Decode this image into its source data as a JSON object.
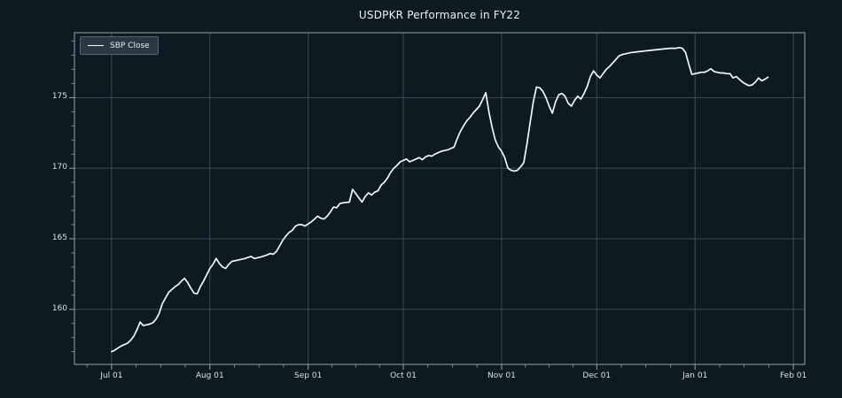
{
  "window": {
    "title": "USDPKR Performance in FY22",
    "background": "#0d1a22"
  },
  "header": {
    "title": "USDPKR Performance in FY22"
  },
  "legend": {
    "label": "SBP Close"
  },
  "style": {
    "background": "#0d1a22",
    "plot_background": "#0d1a22",
    "line_color": "#f4f6f7",
    "grid_color": "#41505a",
    "spine_color": "#93a2ab",
    "tick_color": "#93a2ab",
    "tick_label_color": "#d8e0e3",
    "title_color": "#eef2f4",
    "legend_background": "#2a3844",
    "legend_border": "#55646e",
    "legend_text": "#e8eef0"
  },
  "chart_data": {
    "type": "line",
    "title": "USDPKR Performance in FY22",
    "xlabel": "",
    "ylabel": "",
    "grid": true,
    "legend_position": "upper left",
    "x_unit": "days since Jul 01",
    "xlim": [
      -11.7,
      218.6
    ],
    "ylim": [
      156.1,
      179.6
    ],
    "x_major_ticks": [
      {
        "pos": 0,
        "label": "Jul 01"
      },
      {
        "pos": 31,
        "label": "Aug 01"
      },
      {
        "pos": 62,
        "label": "Sep 01"
      },
      {
        "pos": 92,
        "label": "Oct 01"
      },
      {
        "pos": 123,
        "label": "Nov 01"
      },
      {
        "pos": 153,
        "label": "Dec 01"
      },
      {
        "pos": 184,
        "label": "Jan 01"
      },
      {
        "pos": 215,
        "label": "Feb 01"
      }
    ],
    "x_minor_per_interval": 4,
    "y_major_ticks": [
      {
        "pos": 160,
        "label": "160"
      },
      {
        "pos": 165,
        "label": "165"
      },
      {
        "pos": 170,
        "label": "170"
      },
      {
        "pos": 175,
        "label": "175"
      }
    ],
    "y_minor_step": 1,
    "series": [
      {
        "name": "SBP Close",
        "color": "#f4f6f7",
        "points": [
          [
            0,
            157.0
          ],
          [
            1,
            157.1
          ],
          [
            2,
            157.25
          ],
          [
            3,
            157.4
          ],
          [
            4,
            157.5
          ],
          [
            5,
            157.6
          ],
          [
            6,
            157.8
          ],
          [
            7,
            158.1
          ],
          [
            8,
            158.55
          ],
          [
            9,
            159.1
          ],
          [
            10,
            158.85
          ],
          [
            11,
            158.9
          ],
          [
            12,
            158.95
          ],
          [
            13,
            159.05
          ],
          [
            14,
            159.3
          ],
          [
            15,
            159.7
          ],
          [
            16,
            160.4
          ],
          [
            17,
            160.8
          ],
          [
            18,
            161.2
          ],
          [
            19,
            161.4
          ],
          [
            20,
            161.6
          ],
          [
            21,
            161.75
          ],
          [
            22,
            162.0
          ],
          [
            23,
            162.2
          ],
          [
            24,
            161.9
          ],
          [
            25,
            161.5
          ],
          [
            26,
            161.15
          ],
          [
            27,
            161.1
          ],
          [
            28,
            161.6
          ],
          [
            29,
            162.0
          ],
          [
            30,
            162.45
          ],
          [
            31,
            162.9
          ],
          [
            32,
            163.2
          ],
          [
            33,
            163.6
          ],
          [
            34,
            163.25
          ],
          [
            35,
            163.0
          ],
          [
            36,
            162.9
          ],
          [
            37,
            163.2
          ],
          [
            38,
            163.4
          ],
          [
            40,
            163.5
          ],
          [
            42,
            163.6
          ],
          [
            44,
            163.75
          ],
          [
            45,
            163.6
          ],
          [
            47,
            163.7
          ],
          [
            49,
            163.85
          ],
          [
            50,
            163.95
          ],
          [
            51,
            163.9
          ],
          [
            52,
            164.1
          ],
          [
            53,
            164.5
          ],
          [
            54,
            164.9
          ],
          [
            55,
            165.2
          ],
          [
            56,
            165.45
          ],
          [
            57,
            165.6
          ],
          [
            58,
            165.9
          ],
          [
            59,
            166.0
          ],
          [
            60,
            166.0
          ],
          [
            61,
            165.9
          ],
          [
            62,
            166.05
          ],
          [
            63,
            166.2
          ],
          [
            64,
            166.4
          ],
          [
            65,
            166.6
          ],
          [
            66,
            166.45
          ],
          [
            67,
            166.4
          ],
          [
            68,
            166.6
          ],
          [
            69,
            166.9
          ],
          [
            70,
            167.25
          ],
          [
            71,
            167.2
          ],
          [
            72,
            167.5
          ],
          [
            73,
            167.55
          ],
          [
            75,
            167.6
          ],
          [
            76,
            168.5
          ],
          [
            77,
            168.2
          ],
          [
            78,
            167.9
          ],
          [
            79,
            167.6
          ],
          [
            80,
            168.0
          ],
          [
            81,
            168.25
          ],
          [
            82,
            168.1
          ],
          [
            83,
            168.3
          ],
          [
            84,
            168.4
          ],
          [
            85,
            168.8
          ],
          [
            86,
            169.0
          ],
          [
            87,
            169.3
          ],
          [
            88,
            169.7
          ],
          [
            89,
            170.0
          ],
          [
            90,
            170.2
          ],
          [
            91,
            170.45
          ],
          [
            92,
            170.55
          ],
          [
            93,
            170.65
          ],
          [
            94,
            170.45
          ],
          [
            95,
            170.55
          ],
          [
            96,
            170.65
          ],
          [
            97,
            170.75
          ],
          [
            98,
            170.6
          ],
          [
            99,
            170.8
          ],
          [
            100,
            170.9
          ],
          [
            101,
            170.85
          ],
          [
            102,
            171.0
          ],
          [
            103,
            171.1
          ],
          [
            104,
            171.2
          ],
          [
            105,
            171.25
          ],
          [
            106,
            171.3
          ],
          [
            107,
            171.4
          ],
          [
            108,
            171.5
          ],
          [
            109,
            172.1
          ],
          [
            110,
            172.6
          ],
          [
            111,
            173.0
          ],
          [
            112,
            173.35
          ],
          [
            113,
            173.6
          ],
          [
            114,
            173.9
          ],
          [
            115,
            174.15
          ],
          [
            116,
            174.4
          ],
          [
            117,
            174.85
          ],
          [
            118,
            175.35
          ],
          [
            119,
            174.0
          ],
          [
            120,
            172.9
          ],
          [
            121,
            172.0
          ],
          [
            122,
            171.5
          ],
          [
            123,
            171.2
          ],
          [
            124,
            170.75
          ],
          [
            125,
            170.0
          ],
          [
            126,
            169.85
          ],
          [
            127,
            169.8
          ],
          [
            128,
            169.85
          ],
          [
            129,
            170.1
          ],
          [
            130,
            170.4
          ],
          [
            131,
            171.75
          ],
          [
            132,
            173.25
          ],
          [
            133,
            174.7
          ],
          [
            134,
            175.75
          ],
          [
            135,
            175.7
          ],
          [
            136,
            175.45
          ],
          [
            137,
            175.0
          ],
          [
            138,
            174.4
          ],
          [
            139,
            173.9
          ],
          [
            140,
            174.7
          ],
          [
            141,
            175.2
          ],
          [
            142,
            175.3
          ],
          [
            143,
            175.1
          ],
          [
            144,
            174.6
          ],
          [
            145,
            174.4
          ],
          [
            146,
            174.8
          ],
          [
            147,
            175.1
          ],
          [
            148,
            174.9
          ],
          [
            149,
            175.3
          ],
          [
            150,
            175.8
          ],
          [
            151,
            176.5
          ],
          [
            152,
            176.9
          ],
          [
            153,
            176.6
          ],
          [
            154,
            176.4
          ],
          [
            155,
            176.7
          ],
          [
            156,
            177.0
          ],
          [
            157,
            177.2
          ],
          [
            158,
            177.45
          ],
          [
            159,
            177.7
          ],
          [
            160,
            177.95
          ],
          [
            161,
            178.05
          ],
          [
            162,
            178.1
          ],
          [
            163,
            178.15
          ],
          [
            164,
            178.2
          ],
          [
            166,
            178.25
          ],
          [
            168,
            178.3
          ],
          [
            170,
            178.35
          ],
          [
            172,
            178.4
          ],
          [
            174,
            178.45
          ],
          [
            176,
            178.5
          ],
          [
            178,
            178.5
          ],
          [
            179,
            178.55
          ],
          [
            180,
            178.5
          ],
          [
            181,
            178.2
          ],
          [
            182,
            177.4
          ],
          [
            183,
            176.65
          ],
          [
            184,
            176.7
          ],
          [
            185,
            176.75
          ],
          [
            186,
            176.8
          ],
          [
            187,
            176.8
          ],
          [
            188,
            176.9
          ],
          [
            189,
            177.05
          ],
          [
            190,
            176.85
          ],
          [
            191,
            176.8
          ],
          [
            192,
            176.75
          ],
          [
            193,
            176.75
          ],
          [
            194,
            176.7
          ],
          [
            195,
            176.7
          ],
          [
            196,
            176.4
          ],
          [
            197,
            176.5
          ],
          [
            198,
            176.3
          ],
          [
            199,
            176.1
          ],
          [
            200,
            175.95
          ],
          [
            201,
            175.85
          ],
          [
            202,
            175.9
          ],
          [
            203,
            176.1
          ],
          [
            204,
            176.4
          ],
          [
            205,
            176.2
          ],
          [
            206,
            176.3
          ],
          [
            207,
            176.45
          ]
        ]
      }
    ]
  }
}
